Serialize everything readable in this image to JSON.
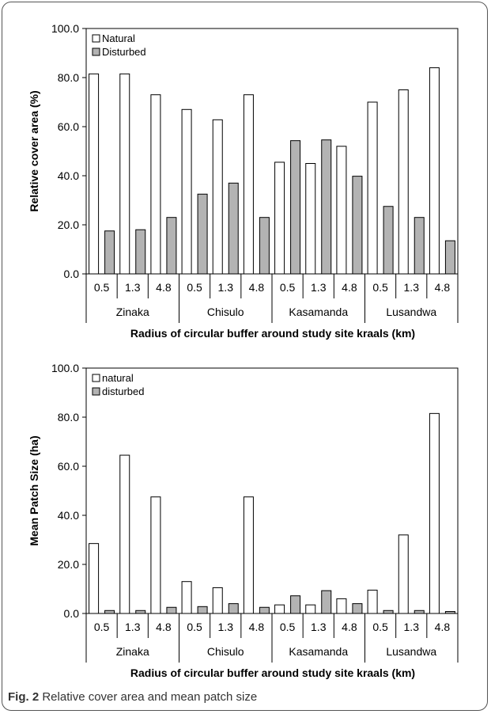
{
  "caption": {
    "label": "Fig. 2",
    "text": "Relative cover area and mean patch size"
  },
  "colors": {
    "natural_fill": "#ffffff",
    "disturbed_fill": "#b3b3b3",
    "stroke": "#000000"
  },
  "chart_data": [
    {
      "type": "bar",
      "ylabel": "Relative cover area (%)",
      "xlabel": "Radius of circular buffer around study site  kraals (km)",
      "ylim": [
        0,
        100
      ],
      "yticks": [
        "0.0",
        "20.0",
        "40.0",
        "60.0",
        "80.0",
        "100.0"
      ],
      "grid": false,
      "legend_position": "top-left",
      "groups": [
        "Zinaka",
        "Chisulo",
        "Kasamanda",
        "Lusandwa"
      ],
      "categories": [
        "0.5",
        "1.3",
        "4.8",
        "0.5",
        "1.3",
        "4.8",
        "0.5",
        "1.3",
        "4.8",
        "0.5",
        "1.3",
        "4.8"
      ],
      "series": [
        {
          "name": "Natural",
          "values": [
            81.5,
            81.5,
            73,
            67,
            62.8,
            73,
            45.5,
            45,
            52,
            70,
            75,
            84
          ]
        },
        {
          "name": "Disturbed",
          "values": [
            17.5,
            18,
            23,
            32.5,
            37,
            23,
            54.3,
            54.6,
            39.8,
            27.5,
            23,
            13.5
          ]
        }
      ]
    },
    {
      "type": "bar",
      "ylabel": "Mean Patch Size (ha)",
      "xlabel": "Radius of circular buffer around study site  kraals (km)",
      "ylim": [
        0,
        100
      ],
      "yticks": [
        "0.0",
        "20.0",
        "40.0",
        "60.0",
        "80.0",
        "100.0"
      ],
      "grid": false,
      "legend_position": "top-left",
      "groups": [
        "Zinaka",
        "Chisulo",
        "Kasamanda",
        "Lusandwa"
      ],
      "categories": [
        "0.5",
        "1.3",
        "4.8",
        "0.5",
        "1.3",
        "4.8",
        "0.5",
        "1.3",
        "4.8",
        "0.5",
        "1.3",
        "4.8"
      ],
      "series": [
        {
          "name": "natural",
          "values": [
            28.5,
            64.5,
            47.5,
            13,
            10.5,
            47.5,
            3.5,
            3.5,
            6,
            9.5,
            32,
            81.5
          ]
        },
        {
          "name": "disturbed",
          "values": [
            1.2,
            1.2,
            2.5,
            2.8,
            4,
            2.5,
            7.2,
            9.3,
            4,
            1.2,
            1.2,
            0.8
          ]
        }
      ]
    }
  ]
}
